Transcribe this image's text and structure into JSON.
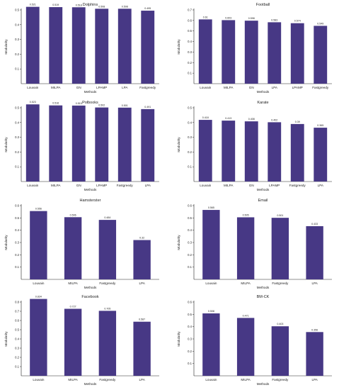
{
  "colors": {
    "bar": "#473885",
    "axis": "#222222"
  },
  "chart_data": [
    {
      "type": "bar",
      "title": "Dolphins",
      "xlabel": "Methods",
      "ylabel": "Modularity",
      "categories": [
        "Louvain",
        "MILPA",
        "GN",
        "LPAMP",
        "LPA",
        "Fastgreedy"
      ],
      "values": [
        0.521,
        0.519,
        0.518,
        0.508,
        0.508,
        0.495
      ],
      "value_labels": [
        "0.521",
        "0.519",
        "0.518",
        "0.508",
        "0.508",
        "0.495"
      ],
      "ylim": [
        0,
        0.5
      ],
      "yticks": [
        "0.1",
        "0.2",
        "0.3",
        "0.4",
        "0.5"
      ],
      "grid": false
    },
    {
      "type": "bar",
      "title": "Football",
      "xlabel": "Methods",
      "ylabel": "Modularity",
      "categories": [
        "Louvain",
        "MILPA",
        "GN",
        "LPA",
        "LPAMP",
        "Fastgreedy"
      ],
      "values": [
        0.61,
        0.603,
        0.598,
        0.583,
        0.574,
        0.549
      ],
      "value_labels": [
        "0.61",
        "0.603",
        "0.598",
        "0.583",
        "0.574",
        "0.549"
      ],
      "ylim": [
        0,
        0.7
      ],
      "yticks": [
        "0.1",
        "0.2",
        "0.3",
        "0.4",
        "0.5",
        "0.6",
        "0.7"
      ],
      "grid": false
    },
    {
      "type": "bar",
      "title": "Polbooks",
      "xlabel": "Methods",
      "ylabel": "Modularity",
      "categories": [
        "Louvain",
        "MILPA",
        "GN",
        "LPAMP",
        "Fastgreedy",
        "LPA"
      ],
      "values": [
        0.523,
        0.516,
        0.515,
        0.502,
        0.501,
        0.491
      ],
      "value_labels": [
        "0.523",
        "0.516",
        "0.515",
        "0.502",
        "0.501",
        "0.491"
      ],
      "ylim": [
        0,
        0.5
      ],
      "yticks": [
        "0.1",
        "0.2",
        "0.3",
        "0.4",
        "0.5"
      ],
      "grid": false
    },
    {
      "type": "bar",
      "title": "Karate",
      "xlabel": "Methods",
      "ylabel": "Modularity",
      "categories": [
        "Louvain",
        "MILPA",
        "GN",
        "LPAMP",
        "Fastgreedy",
        "LPA"
      ],
      "values": [
        0.418,
        0.413,
        0.408,
        0.402,
        0.39,
        0.365
      ],
      "value_labels": [
        "0.418",
        "0.413",
        "0.408",
        "0.402",
        "0.39",
        "0.365"
      ],
      "ylim": [
        0,
        0.5
      ],
      "yticks": [
        "0.1",
        "0.2",
        "0.3",
        "0.4",
        "0.5"
      ],
      "grid": false
    },
    {
      "type": "bar",
      "title": "Hamsterster",
      "xlabel": "Methods",
      "ylabel": "Modularity",
      "categories": [
        "Louvain",
        "MILPA",
        "Fastgreedy",
        "LPA"
      ],
      "values": [
        0.556,
        0.506,
        0.484,
        0.32
      ],
      "value_labels": [
        "0.556",
        "0.506",
        "0.484",
        "0.32"
      ],
      "ylim": [
        0,
        0.6
      ],
      "yticks": [
        "0.1",
        "0.2",
        "0.3",
        "0.4",
        "0.5",
        "0.6"
      ],
      "grid": false
    },
    {
      "type": "bar",
      "title": "Email",
      "xlabel": "Methods",
      "ylabel": "Modularity",
      "categories": [
        "Louvain",
        "MILPA",
        "Fastgreedy",
        "LPA"
      ],
      "values": [
        0.565,
        0.505,
        0.501,
        0.433
      ],
      "value_labels": [
        "0.565",
        "0.505",
        "0.501",
        "0.433"
      ],
      "ylim": [
        0,
        0.6
      ],
      "yticks": [
        "0.1",
        "0.2",
        "0.3",
        "0.4",
        "0.5",
        "0.6"
      ],
      "grid": false
    },
    {
      "type": "bar",
      "title": "Facebook",
      "xlabel": "Methods",
      "ylabel": "Modularity",
      "categories": [
        "Louvain",
        "MILPA",
        "Fastgreedy",
        "LPA"
      ],
      "values": [
        0.834,
        0.727,
        0.705,
        0.587
      ],
      "value_labels": [
        "0.834",
        "0.727",
        "0.705",
        "0.587"
      ],
      "ylim": [
        0,
        0.8
      ],
      "yticks": [
        "0.1",
        "0.2",
        "0.3",
        "0.4",
        "0.5",
        "0.6",
        "0.7",
        "0.8"
      ],
      "grid": false
    },
    {
      "type": "bar",
      "title": "BM-CK",
      "xlabel": "Methods",
      "ylabel": "Modularity",
      "categories": [
        "Louvain",
        "MILPA",
        "Fastgreedy",
        "LPA"
      ],
      "values": [
        0.508,
        0.471,
        0.403,
        0.356
      ],
      "value_labels": [
        "0.508",
        "0.471",
        "0.403",
        "0.356"
      ],
      "ylim": [
        0,
        0.6
      ],
      "yticks": [
        "0.1",
        "0.2",
        "0.3",
        "0.4",
        "0.5",
        "0.6"
      ],
      "grid": false
    }
  ]
}
